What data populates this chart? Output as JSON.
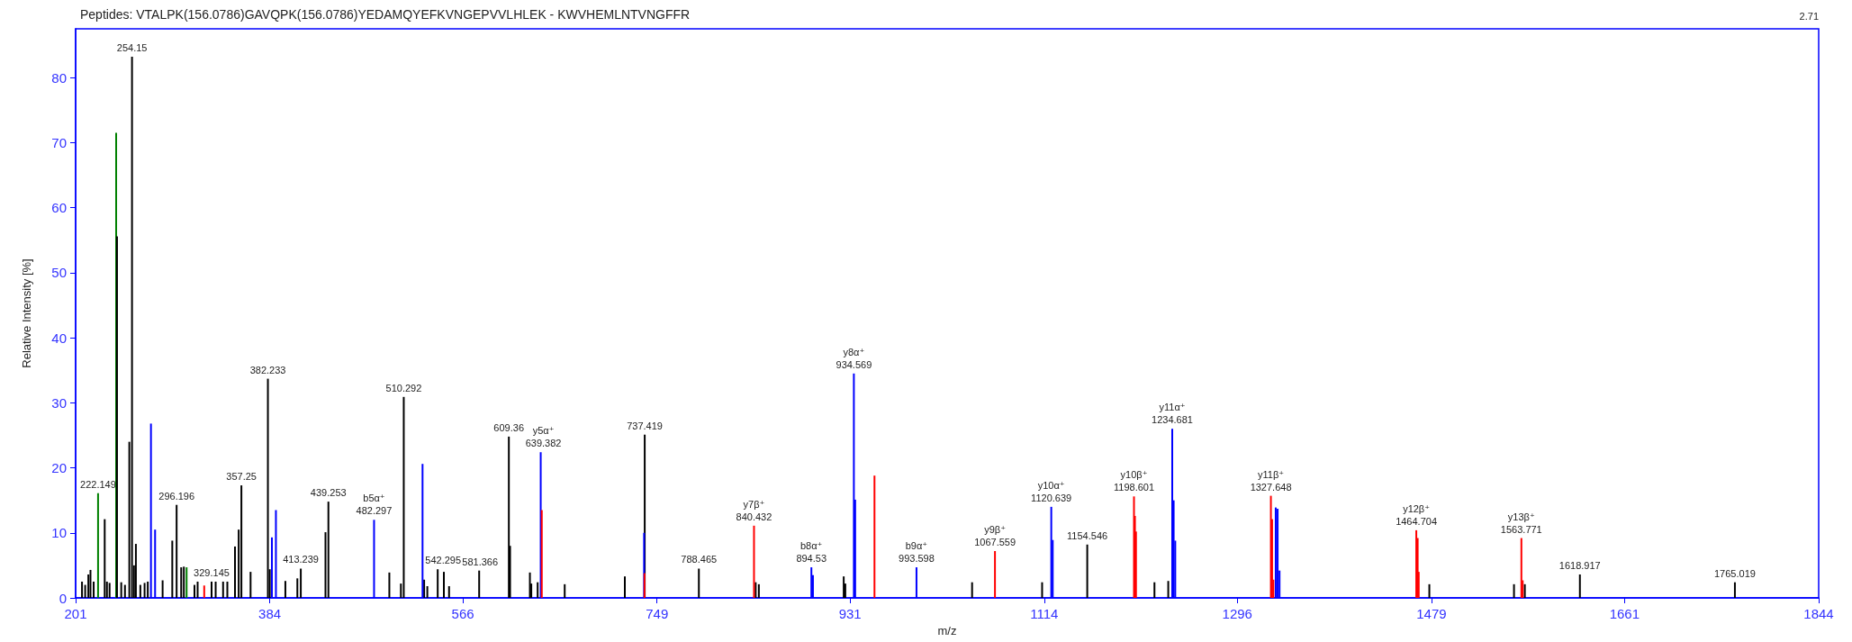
{
  "chart_data": {
    "type": "bar",
    "title": "Peptides: VTALPK(156.0786)GAVQPK(156.0786)YEDAMQYEFKVNGEPVVLHLEK - KWVHEMLNTVNGFFR",
    "xlabel": "m/z",
    "ylabel": "Relative Intensity [%]",
    "xlim": [
      201,
      1844
    ],
    "xticks": [
      201,
      384,
      566,
      749,
      931,
      1114,
      1296,
      1479,
      1661,
      1844
    ],
    "ylim": [
      0,
      87.5
    ],
    "yticks": [
      0,
      10,
      20,
      30,
      40,
      50,
      60,
      70,
      80
    ],
    "grid": false,
    "series": [
      {
        "color": "#008000",
        "x": [
          222.149,
          239.2,
          305.6
        ],
        "values": [
          16.1,
          71.5,
          4.7
        ]
      },
      {
        "color": "#000000",
        "x": [
          207,
          210,
          213,
          215,
          218,
          228.4,
          230.5,
          233,
          240.0,
          244,
          247.5,
          251.6,
          254.15,
          256,
          257.8,
          262,
          266,
          269,
          283,
          292.1,
          296.196,
          300.5,
          303,
          313,
          316,
          329.145,
          333,
          340,
          344,
          351.2,
          354.7,
          357.25,
          365.9,
          382.233,
          384,
          398.7,
          410,
          413.239,
          436.5,
          439.253,
          496.7,
          507.6,
          510.292,
          529.5,
          532.5,
          542.295,
          548.1,
          553,
          581.366,
          609.36,
          610.5,
          629.2,
          630.5,
          636.5,
          662,
          718.7,
          737.419,
          788.465,
          842,
          845,
          925,
          926.5,
          1046,
          1112,
          1154.546,
          1217.9,
          1230.9,
          1477,
          1556.8,
          1567,
          1618.917,
          1765.019
        ],
        "values": [
          2.5,
          2.0,
          3.6,
          4.3,
          2.5,
          12.1,
          2.5,
          2.3,
          55.6,
          2.4,
          2.0,
          24.0,
          83.2,
          5.0,
          8.3,
          2.0,
          2.3,
          2.5,
          2.7,
          8.8,
          14.3,
          4.7,
          4.8,
          2.0,
          2.5,
          2.5,
          2.5,
          2.5,
          2.5,
          7.9,
          10.5,
          17.3,
          4.0,
          33.7,
          4.4,
          2.6,
          3.0,
          4.5,
          10.1,
          14.8,
          3.9,
          2.2,
          30.9,
          2.8,
          1.8,
          4.4,
          4.0,
          1.8,
          4.2,
          24.8,
          8.0,
          3.9,
          2.2,
          2.4,
          2.1,
          3.3,
          25.1,
          4.5,
          2.4,
          2.1,
          3.3,
          2.2,
          2.4,
          2.4,
          8.2,
          2.4,
          2.6,
          2.1,
          2.1,
          2.1,
          3.6,
          2.4
        ]
      },
      {
        "color": "#0000ff",
        "x": [
          272.0,
          275.9,
          386.0,
          389.8,
          482.297,
          528.0,
          639.382,
          736.8,
          894.53,
          896,
          934.569,
          935.8,
          993.598,
          1120.639,
          1122,
          1234.681,
          1236,
          1237.5,
          1332.2,
          1334.0,
          1335.8
        ],
        "values": [
          26.8,
          10.5,
          9.3,
          13.5,
          12.0,
          20.6,
          22.4,
          10.0,
          4.7,
          3.5,
          34.5,
          15.1,
          4.7,
          14.0,
          8.9,
          26.0,
          15.0,
          8.8,
          13.9,
          13.7,
          4.2
        ]
      },
      {
        "color": "#ff0000",
        "x": [
          322.2,
          640.4,
          737.2,
          840.432,
          954,
          1067.559,
          1198.601,
          1199.5,
          1200.5,
          1327.648,
          1328.8,
          1330,
          1464.704,
          1466,
          1467,
          1563.771,
          1565
        ],
        "values": [
          1.9,
          13.5,
          3.8,
          11.1,
          18.8,
          7.2,
          15.6,
          12.6,
          10.2,
          15.7,
          12.1,
          2.8,
          10.4,
          9.2,
          4.0,
          9.2,
          2.7
        ]
      }
    ],
    "annotations": [
      "2.71",
      {
        "text": "222.149",
        "x": 222.149,
        "y": 16.1
      },
      {
        "text": "254.15",
        "x": 254.15,
        "y": 83.2
      },
      {
        "text": "296.196",
        "x": 296.196,
        "y": 14.3
      },
      {
        "text": "329.145",
        "x": 329.145,
        "y": 2.5
      },
      {
        "text": "357.25",
        "x": 357.25,
        "y": 17.3
      },
      {
        "text": "382.233",
        "x": 382.233,
        "y": 33.7
      },
      {
        "text": "413.239",
        "x": 413.239,
        "y": 4.5
      },
      {
        "text": "439.253",
        "x": 439.253,
        "y": 14.8
      },
      {
        "text": "b5α⁺\n482.297",
        "x": 482.297,
        "y": 12.0
      },
      {
        "text": "510.292",
        "x": 510.292,
        "y": 30.9
      },
      {
        "text": "542.295",
        "x": 542.295,
        "y": 4.4
      },
      {
        "text": "581.366",
        "x": 581.366,
        "y": 4.2
      },
      {
        "text": "609.36",
        "x": 609.36,
        "y": 24.8
      },
      {
        "text": "y5α⁺\n639.382",
        "x": 639.382,
        "y": 22.4
      },
      {
        "text": "737.419",
        "x": 737.419,
        "y": 25.1
      },
      {
        "text": "788.465",
        "x": 788.465,
        "y": 4.5
      },
      {
        "text": "y7β⁺\n840.432",
        "x": 840.432,
        "y": 11.1
      },
      {
        "text": "b8α⁺\n894.53",
        "x": 894.53,
        "y": 4.7
      },
      {
        "text": "y8α⁺\n934.569",
        "x": 934.569,
        "y": 34.5
      },
      {
        "text": "b9α⁺\n993.598",
        "x": 993.598,
        "y": 4.7
      },
      {
        "text": "y9β⁺\n1067.559",
        "x": 1067.559,
        "y": 7.2
      },
      {
        "text": "y10α⁺\n1120.639",
        "x": 1120.639,
        "y": 14.0
      },
      {
        "text": "1154.546",
        "x": 1154.546,
        "y": 8.2
      },
      {
        "text": "y10β⁺\n1198.601",
        "x": 1198.601,
        "y": 15.6
      },
      {
        "text": "y11α⁺\n1234.681",
        "x": 1234.681,
        "y": 26.0
      },
      {
        "text": "y11β⁺\n1327.648",
        "x": 1327.648,
        "y": 15.7
      },
      {
        "text": "y12β⁺\n1464.704",
        "x": 1464.704,
        "y": 10.4
      },
      {
        "text": "y13β⁺\n1563.771",
        "x": 1563.771,
        "y": 9.2
      },
      {
        "text": "1618.917",
        "x": 1618.917,
        "y": 3.6
      },
      {
        "text": "1765.019",
        "x": 1765.019,
        "y": 2.4
      }
    ]
  }
}
